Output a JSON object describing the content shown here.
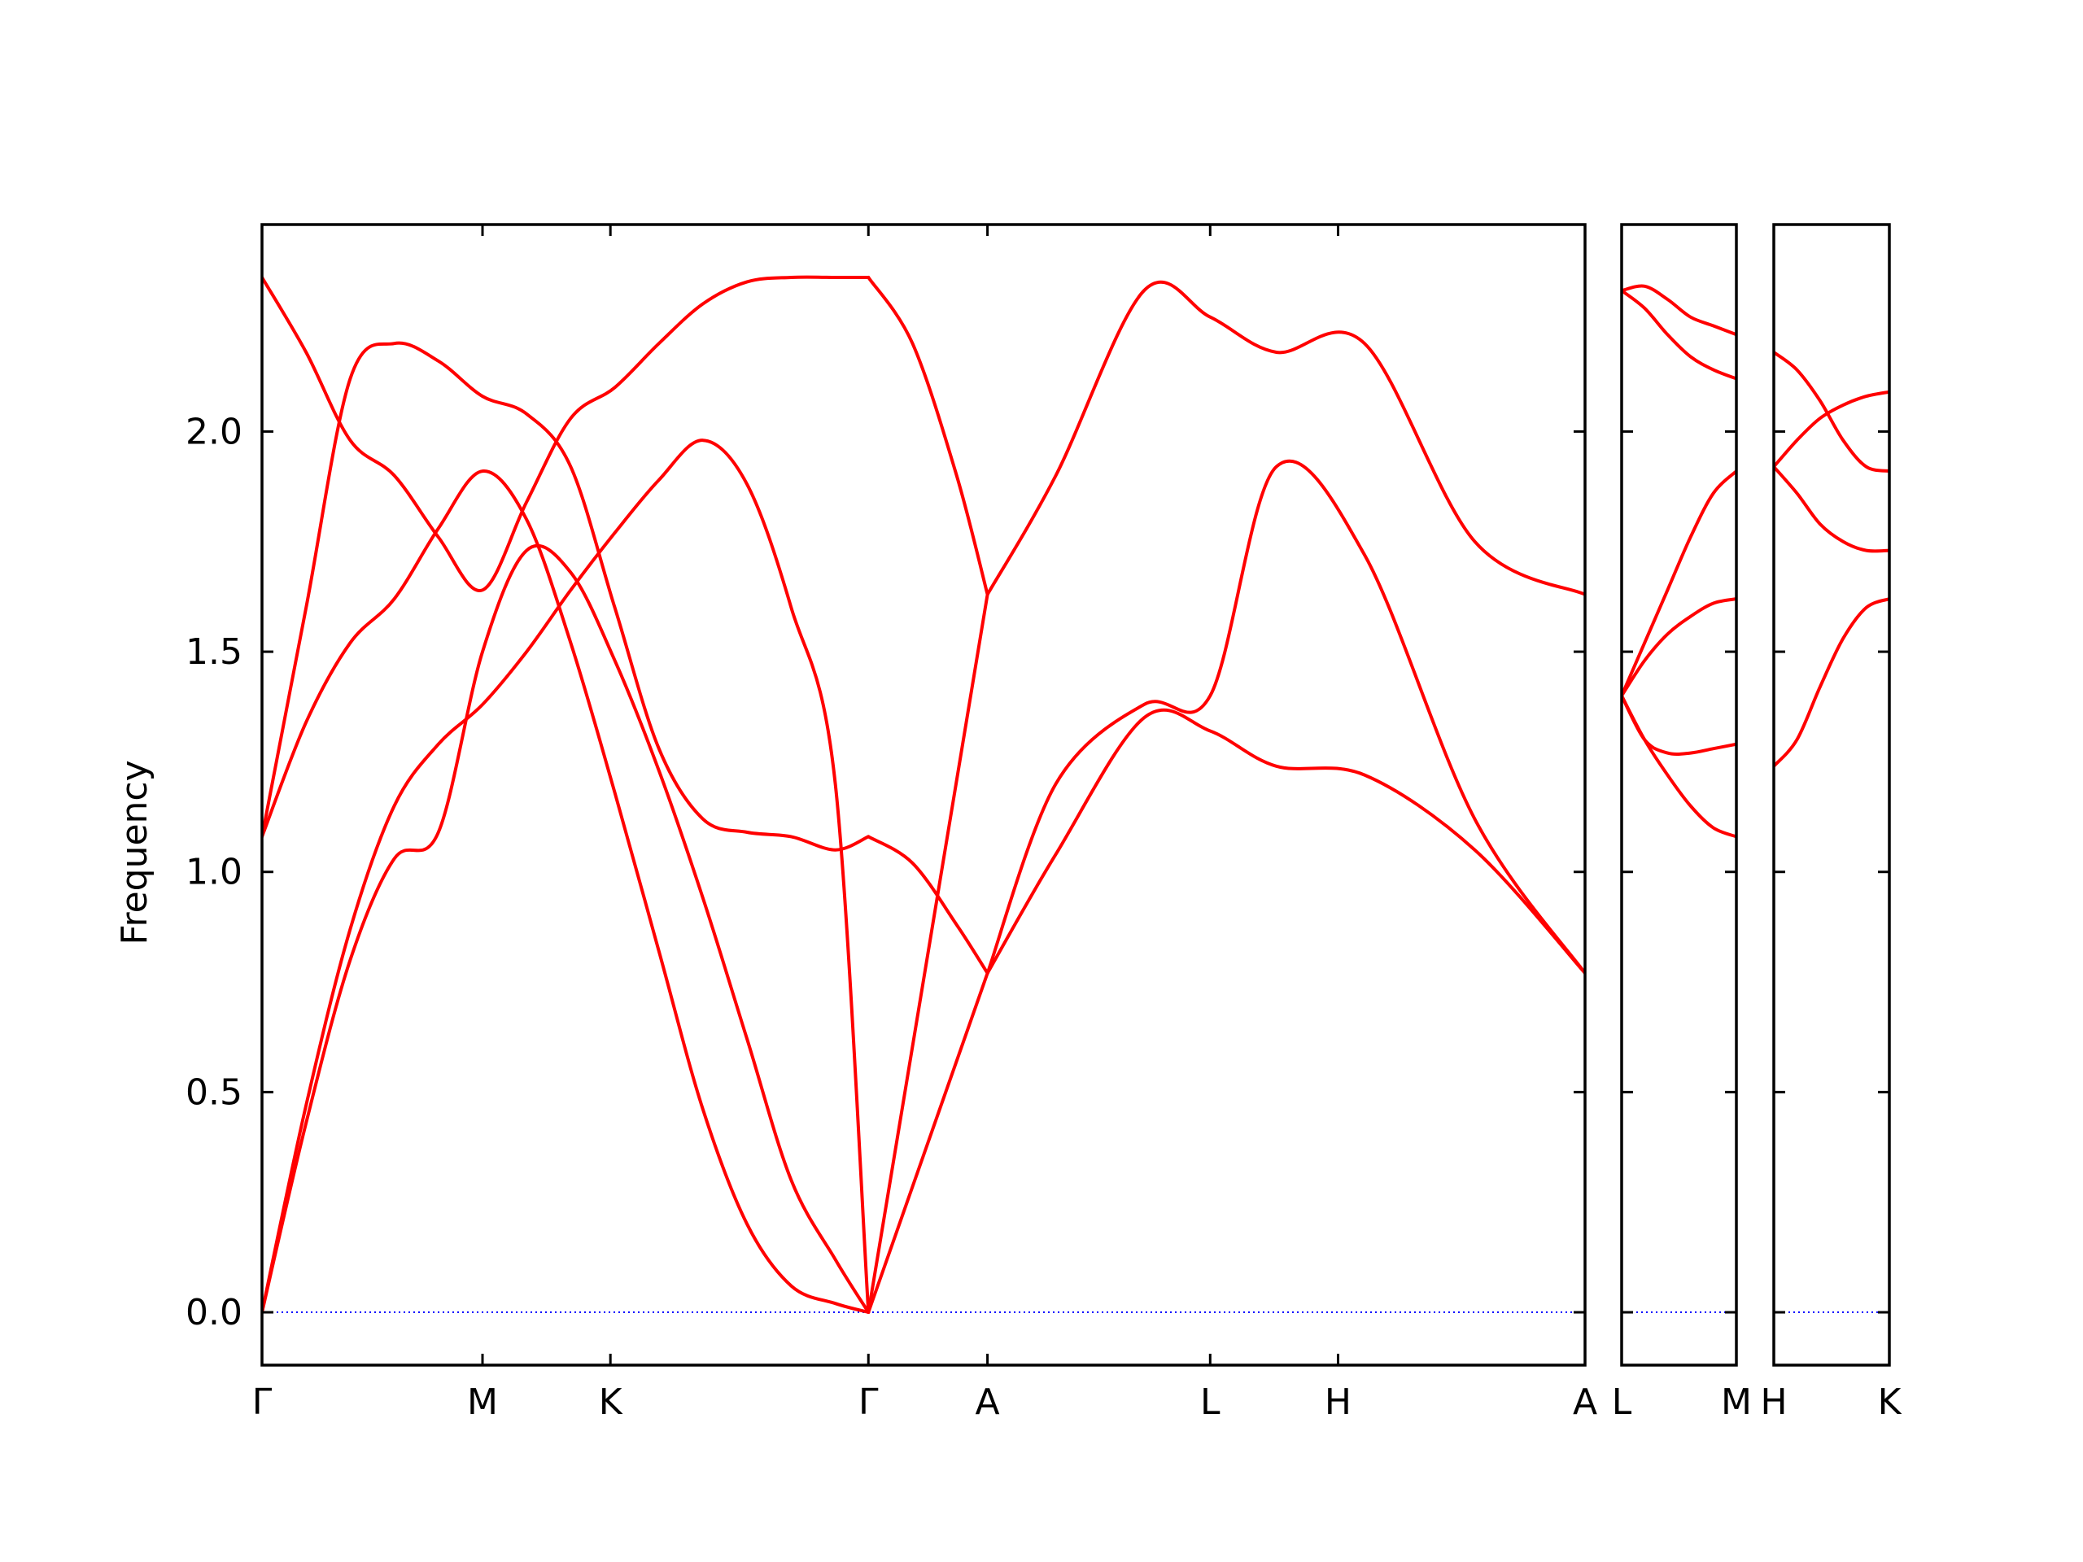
{
  "chart_data": {
    "type": "line",
    "title": "",
    "ylabel": "Frequency",
    "xlabel": "",
    "ylim": [
      -0.12,
      2.47
    ],
    "yticks": [
      "0.0",
      "0.5",
      "1.0",
      "1.5",
      "2.0"
    ],
    "grid": false,
    "colors": {
      "bands": "#ff0000",
      "zero_line": "#0000ff",
      "frame": "#000000"
    },
    "segments": [
      {
        "path_labels": [
          "Γ",
          "M",
          "K",
          "Γ",
          "A",
          "L",
          "H",
          "A"
        ],
        "x_range": [
          0,
          6.0
        ],
        "bands": [
          {
            "x": [
              0,
              0.2,
              0.4,
              0.6,
              0.8,
              1.0,
              1.2,
              1.4,
              1.6,
              1.8,
              2.0,
              2.2,
              2.4,
              2.6,
              2.75
            ],
            "y": [
              0,
              0.47,
              0.87,
              1.15,
              1.29,
              1.38,
              1.5,
              1.64,
              1.77,
              1.89,
              1.98,
              1.88,
              1.6,
              1.2,
              0
            ]
          },
          {
            "x": [
              0,
              0.2,
              0.4,
              0.6,
              0.8,
              1.0,
              1.2,
              1.4,
              1.6,
              1.8,
              2.0,
              2.2,
              2.4,
              2.6,
              2.75
            ],
            "y": [
              0,
              0.43,
              0.8,
              1.03,
              1.09,
              1.5,
              1.73,
              1.68,
              1.48,
              1.23,
              0.94,
              0.62,
              0.3,
              0.12,
              0
            ]
          },
          {
            "x": [
              0,
              0.2,
              0.4,
              0.6,
              0.8,
              1.0,
              1.2,
              1.4,
              1.6,
              1.8,
              2.0,
              2.2,
              2.4,
              2.6,
              2.75
            ],
            "y": [
              1.08,
              1.34,
              1.52,
              1.62,
              1.78,
              1.91,
              1.8,
              1.52,
              1.18,
              0.82,
              0.46,
              0.2,
              0.06,
              0.02,
              0
            ]
          },
          {
            "x": [
              0,
              0.2,
              0.4,
              0.6,
              0.8,
              1.0,
              1.2,
              1.4,
              1.6,
              1.8,
              2.0,
              2.2,
              2.4,
              2.6,
              2.75
            ],
            "y": [
              1.08,
              1.6,
              2.12,
              2.2,
              2.16,
              2.08,
              2.04,
              1.92,
              1.6,
              1.28,
              1.12,
              1.09,
              1.08,
              1.05,
              1.08
            ]
          },
          {
            "x": [
              0,
              0.2,
              0.4,
              0.6,
              0.8,
              1.0,
              1.2,
              1.4,
              1.6,
              1.8,
              2.0,
              2.2,
              2.4,
              2.6,
              2.75
            ],
            "y": [
              2.35,
              2.18,
              1.98,
              1.9,
              1.76,
              1.64,
              1.84,
              2.03,
              2.1,
              2.2,
              2.29,
              2.34,
              2.35,
              2.35,
              2.35
            ]
          },
          {
            "x": [
              2.75,
              3.29
            ],
            "y": [
              0,
              1.63
            ]
          },
          {
            "x": [
              2.75,
              3.29
            ],
            "y": [
              0,
              0.77
            ]
          },
          {
            "x": [
              2.75,
              2.95,
              3.15,
              3.29
            ],
            "y": [
              1.08,
              1.02,
              0.88,
              0.77
            ]
          },
          {
            "x": [
              2.75,
              2.95,
              3.15,
              3.29
            ],
            "y": [
              2.35,
              2.2,
              1.9,
              1.63
            ]
          },
          {
            "x": [
              3.29,
              3.6,
              4.0,
              4.3,
              4.6,
              5.0,
              5.5,
              6.0
            ],
            "y": [
              1.63,
              1.9,
              2.32,
              2.26,
              2.18,
              2.2,
              1.75,
              1.63
            ]
          },
          {
            "x": [
              3.29,
              3.6,
              4.0,
              4.3,
              4.6,
              5.0,
              5.5,
              6.0
            ],
            "y": [
              0.77,
              1.2,
              1.38,
              1.4,
              1.92,
              1.72,
              1.12,
              0.77
            ]
          },
          {
            "x": [
              3.29,
              3.6,
              4.0,
              4.3,
              4.6,
              5.0,
              5.5,
              6.0
            ],
            "y": [
              0.77,
              1.04,
              1.35,
              1.32,
              1.24,
              1.22,
              1.05,
              0.77
            ]
          }
        ]
      },
      {
        "path_labels": [
          "L",
          "M"
        ],
        "x_range": [
          0,
          1.0
        ],
        "bands": [
          {
            "x": [
              0,
              0.2,
              0.4,
              0.6,
              0.8,
              1.0
            ],
            "y": [
              2.32,
              2.33,
              2.3,
              2.26,
              2.24,
              2.22
            ]
          },
          {
            "x": [
              0,
              0.2,
              0.4,
              0.6,
              0.8,
              1.0
            ],
            "y": [
              2.32,
              2.28,
              2.22,
              2.17,
              2.14,
              2.12
            ]
          },
          {
            "x": [
              0,
              0.2,
              0.4,
              0.6,
              0.8,
              1.0
            ],
            "y": [
              1.4,
              1.52,
              1.64,
              1.76,
              1.86,
              1.91
            ]
          },
          {
            "x": [
              0,
              0.2,
              0.4,
              0.6,
              0.8,
              1.0
            ],
            "y": [
              1.4,
              1.48,
              1.54,
              1.58,
              1.61,
              1.62
            ]
          },
          {
            "x": [
              0,
              0.2,
              0.4,
              0.6,
              0.8,
              1.0
            ],
            "y": [
              1.4,
              1.3,
              1.27,
              1.27,
              1.28,
              1.29
            ]
          },
          {
            "x": [
              0,
              0.2,
              0.4,
              0.6,
              0.8,
              1.0
            ],
            "y": [
              1.4,
              1.3,
              1.22,
              1.15,
              1.1,
              1.08
            ]
          }
        ]
      },
      {
        "path_labels": [
          "H",
          "K"
        ],
        "x_range": [
          0,
          1.0
        ],
        "bands": [
          {
            "x": [
              0,
              0.2,
              0.4,
              0.6,
              0.8,
              1.0
            ],
            "y": [
              2.18,
              2.14,
              2.07,
              1.98,
              1.92,
              1.91
            ]
          },
          {
            "x": [
              0,
              0.2,
              0.4,
              0.6,
              0.8,
              1.0
            ],
            "y": [
              1.92,
              1.98,
              2.03,
              2.06,
              2.08,
              2.09
            ]
          },
          {
            "x": [
              0,
              0.2,
              0.4,
              0.6,
              0.8,
              1.0
            ],
            "y": [
              1.92,
              1.86,
              1.79,
              1.75,
              1.73,
              1.73
            ]
          },
          {
            "x": [
              0,
              0.2,
              0.4,
              0.6,
              0.8,
              1.0
            ],
            "y": [
              1.24,
              1.3,
              1.42,
              1.53,
              1.6,
              1.62
            ]
          }
        ]
      }
    ]
  }
}
